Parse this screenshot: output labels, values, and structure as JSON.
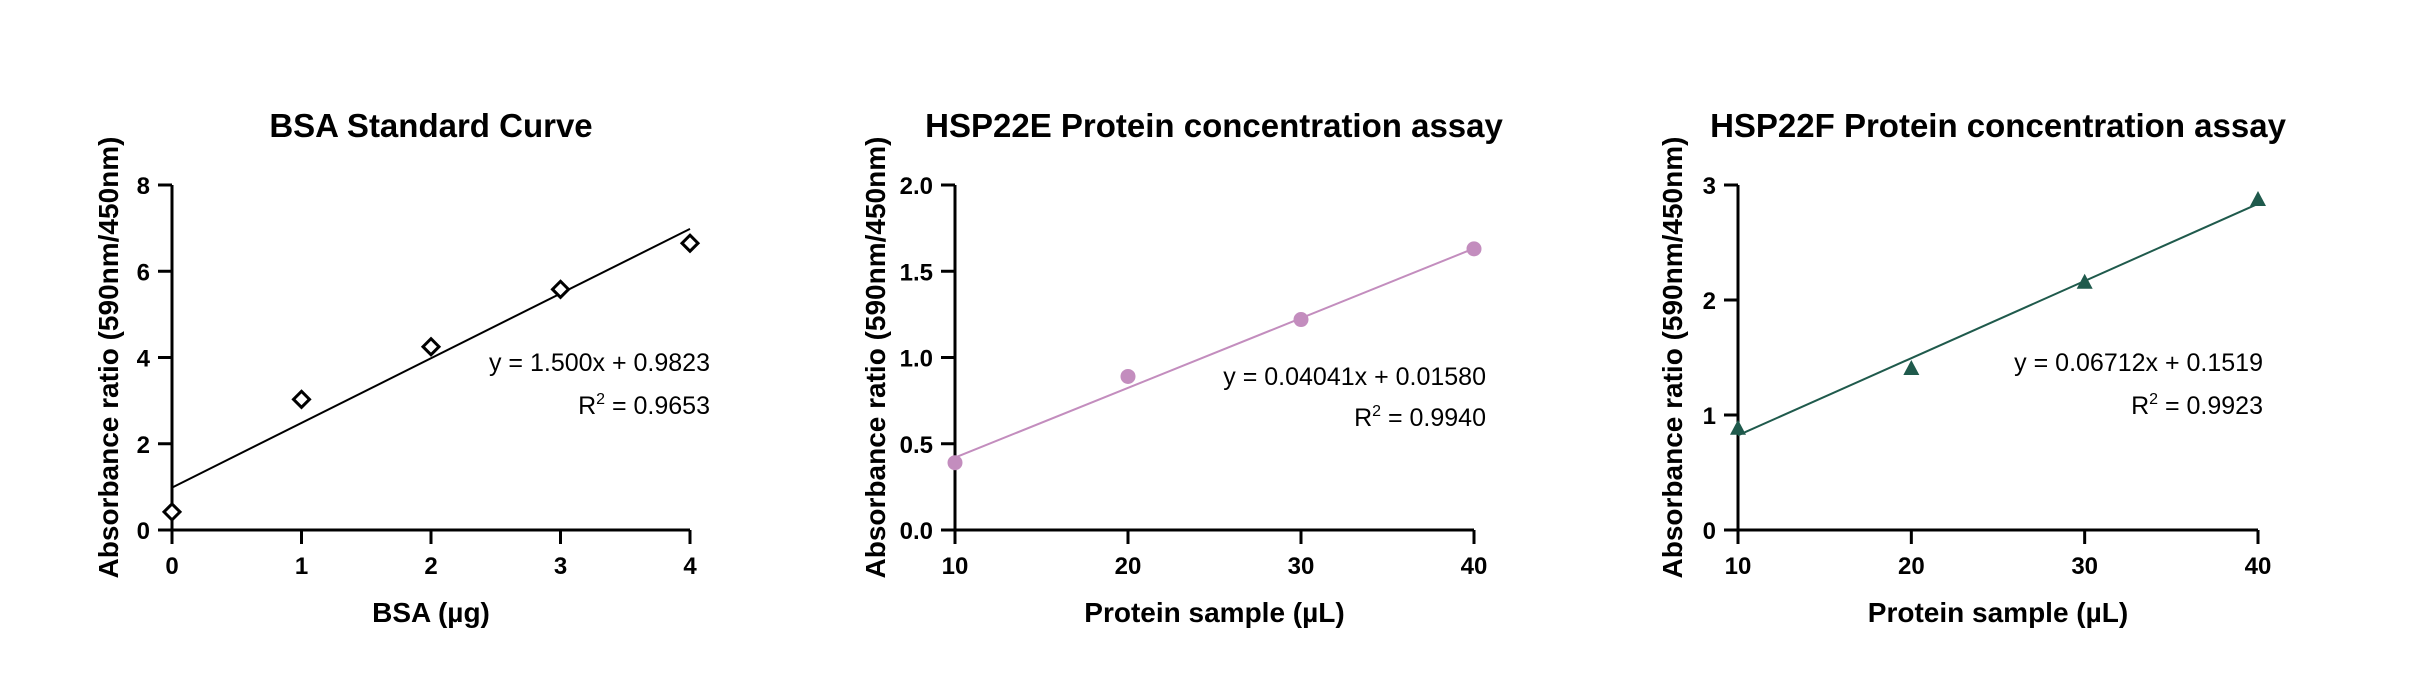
{
  "chart_data": [
    {
      "type": "scatter",
      "title": "BSA Standard Curve",
      "xlabel": "BSA (µg)",
      "ylabel": "Absorbance ratio (590nm/450nm)",
      "xlim": [
        0,
        4
      ],
      "ylim": [
        0,
        8
      ],
      "xticks": [
        0,
        1,
        2,
        3,
        4
      ],
      "yticks": [
        0,
        2,
        4,
        6,
        8
      ],
      "xtick_labels": [
        "0",
        "1",
        "2",
        "3",
        "4"
      ],
      "ytick_labels": [
        "0",
        "2",
        "4",
        "6",
        "8"
      ],
      "grid": false,
      "marker": "diamond-open",
      "color": "#000000",
      "series": [
        {
          "x": [
            0,
            1,
            2,
            3,
            4
          ],
          "y": [
            0.42,
            3.03,
            4.25,
            5.58,
            6.65
          ]
        }
      ],
      "fit": {
        "slope": 1.5,
        "intercept": 0.9823,
        "x_range": [
          0,
          4
        ]
      },
      "equation": "y = 1.500x + 0.9823",
      "r2_prefix": "R",
      "r2_sup": "2",
      "r2_value": " = 0.9653"
    },
    {
      "type": "scatter",
      "title": "HSP22E Protein concentration assay",
      "xlabel": "Protein sample (µL)",
      "ylabel": "Absorbance ratio (590nm/450nm)",
      "xlim": [
        10,
        40
      ],
      "ylim": [
        0,
        2
      ],
      "xticks": [
        10,
        20,
        30,
        40
      ],
      "yticks": [
        0,
        0.5,
        1,
        1.5,
        2
      ],
      "xtick_labels": [
        "10",
        "20",
        "30",
        "40"
      ],
      "ytick_labels": [
        "0.0",
        "0.5",
        "1.0",
        "1.5",
        "2.0"
      ],
      "grid": false,
      "marker": "circle",
      "color": "#C38DBE",
      "series": [
        {
          "x": [
            10,
            20,
            30,
            40
          ],
          "y": [
            0.39,
            0.89,
            1.22,
            1.63
          ]
        }
      ],
      "fit": {
        "slope": 0.04041,
        "intercept": 0.0158,
        "x_range": [
          10,
          40
        ]
      },
      "equation": "y = 0.04041x + 0.01580",
      "r2_prefix": "R",
      "r2_sup": "2",
      "r2_value": " = 0.9940"
    },
    {
      "type": "scatter",
      "title": "HSP22F Protein concentration assay",
      "xlabel": "Protein sample (µL)",
      "ylabel": "Absorbance ratio (590nm/450nm)",
      "xlim": [
        10,
        40
      ],
      "ylim": [
        0,
        3
      ],
      "xticks": [
        10,
        20,
        30,
        40
      ],
      "yticks": [
        0,
        1,
        2,
        3
      ],
      "xtick_labels": [
        "10",
        "20",
        "30",
        "40"
      ],
      "ytick_labels": [
        "0",
        "1",
        "2",
        "3"
      ],
      "grid": false,
      "marker": "triangle",
      "color": "#1F5A4C",
      "series": [
        {
          "x": [
            10,
            20,
            30,
            40
          ],
          "y": [
            0.88,
            1.4,
            2.15,
            2.87
          ]
        }
      ],
      "fit": {
        "slope": 0.06712,
        "intercept": 0.1519,
        "x_range": [
          10,
          40
        ]
      },
      "equation": "y = 0.06712x + 0.1519",
      "r2_prefix": "R",
      "r2_sup": "2",
      "r2_value": " = 0.9923"
    }
  ]
}
